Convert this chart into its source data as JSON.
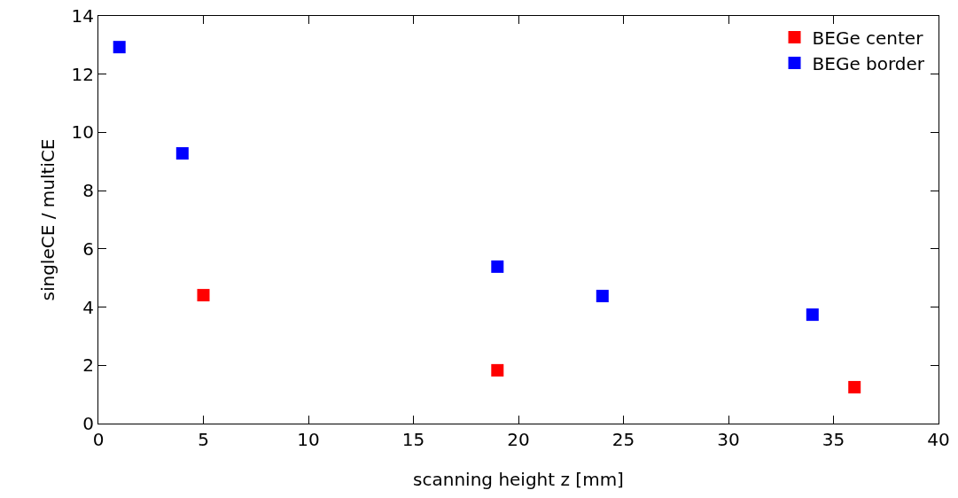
{
  "chart_data": {
    "type": "scatter",
    "xlabel": "scanning height z [mm]",
    "ylabel": "singleCE / multiCE",
    "xlim": [
      0,
      40
    ],
    "xticks": [
      0,
      5,
      10,
      15,
      20,
      25,
      30,
      35,
      40
    ],
    "ylim": [
      0,
      14
    ],
    "yticks": [
      0,
      2,
      4,
      6,
      8,
      10,
      12,
      14
    ],
    "grid": false,
    "legend": "top right",
    "marker": "square",
    "series": [
      {
        "name": "BEGe center",
        "color": "#ff0000",
        "x": [
          5,
          19,
          36
        ],
        "values": [
          4.41,
          1.83,
          1.25
        ]
      },
      {
        "name": "BEGe border",
        "color": "#0000ff",
        "x": [
          1,
          4,
          19,
          24,
          34
        ],
        "values": [
          12.93,
          9.28,
          5.39,
          4.38,
          3.74
        ]
      }
    ]
  }
}
